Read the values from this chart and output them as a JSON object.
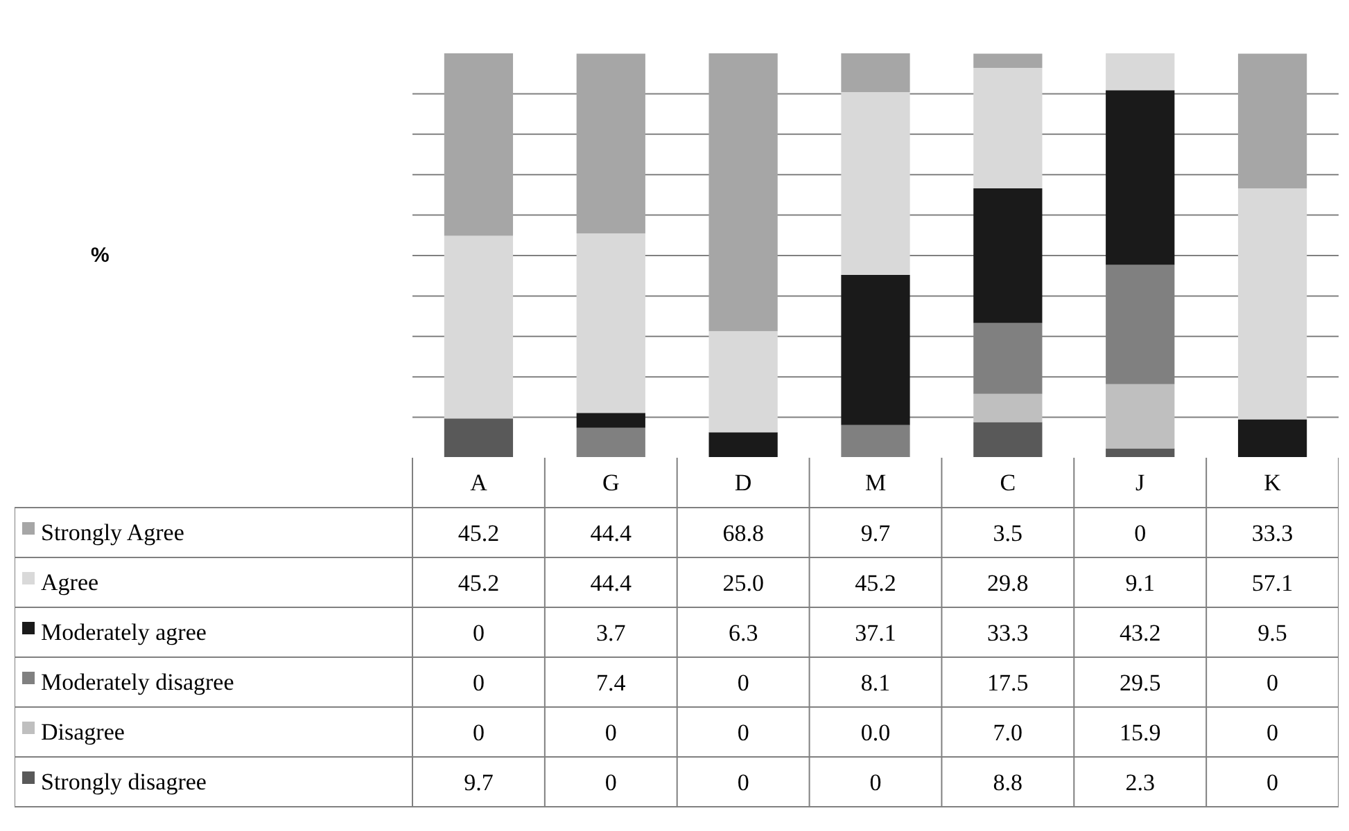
{
  "chart_data": {
    "type": "bar",
    "stacked": true,
    "annotations": [
      "%"
    ],
    "categories": [
      "A",
      "G",
      "D",
      "M",
      "C",
      "J",
      "K"
    ],
    "ylim": [
      0,
      100
    ],
    "yticks": [
      {
        "value": 10,
        "label": null
      },
      {
        "value": 20,
        "label": null
      },
      {
        "value": 30,
        "label": null
      },
      {
        "value": 40,
        "label": null
      },
      {
        "value": 50,
        "label": null
      },
      {
        "value": 60,
        "label": null
      },
      {
        "value": 70,
        "label": null
      },
      {
        "value": 80,
        "label": null
      },
      {
        "value": 90,
        "label": null
      }
    ],
    "grid": "y",
    "legend": "bottom left",
    "series": [
      {
        "name": "Strongly disagree",
        "color": "#595959",
        "values": [
          9.7,
          0,
          0,
          0,
          8.8,
          2.3,
          0
        ],
        "value_labels": [
          "9.7",
          "0",
          "0",
          "0",
          "8.8",
          "2.3",
          "0"
        ]
      },
      {
        "name": "Disagree",
        "color": "#bfbfbf",
        "values": [
          0,
          0,
          0,
          0.0,
          7.0,
          15.9,
          0
        ],
        "value_labels": [
          "0",
          "0",
          "0",
          "0.0",
          "7.0",
          "15.9",
          "0"
        ]
      },
      {
        "name": "Moderately disagree",
        "color": "#808080",
        "values": [
          0,
          7.4,
          0,
          8.1,
          17.5,
          29.5,
          0
        ],
        "value_labels": [
          "0",
          "7.4",
          "0",
          "8.1",
          "17.5",
          "29.5",
          "0"
        ]
      },
      {
        "name": "Moderately agree",
        "color": "#1a1a1a",
        "values": [
          0,
          3.7,
          6.3,
          37.1,
          33.3,
          43.2,
          9.5
        ],
        "value_labels": [
          "0",
          "3.7",
          "6.3",
          "37.1",
          "33.3",
          "43.2",
          "9.5"
        ]
      },
      {
        "name": "Agree",
        "color": "#d9d9d9",
        "values": [
          45.2,
          44.4,
          25.0,
          45.2,
          29.8,
          9.1,
          57.1
        ],
        "value_labels": [
          "45.2",
          "44.4",
          "25.0",
          "45.2",
          "29.8",
          "9.1",
          "57.1"
        ]
      },
      {
        "name": "Strongly Agree",
        "color": "#a6a6a6",
        "values": [
          45.2,
          44.4,
          68.8,
          9.7,
          3.5,
          0,
          33.3
        ],
        "value_labels": [
          "45.2",
          "44.4",
          "68.8",
          "9.7",
          "3.5",
          "0",
          "33.3"
        ]
      }
    ]
  }
}
